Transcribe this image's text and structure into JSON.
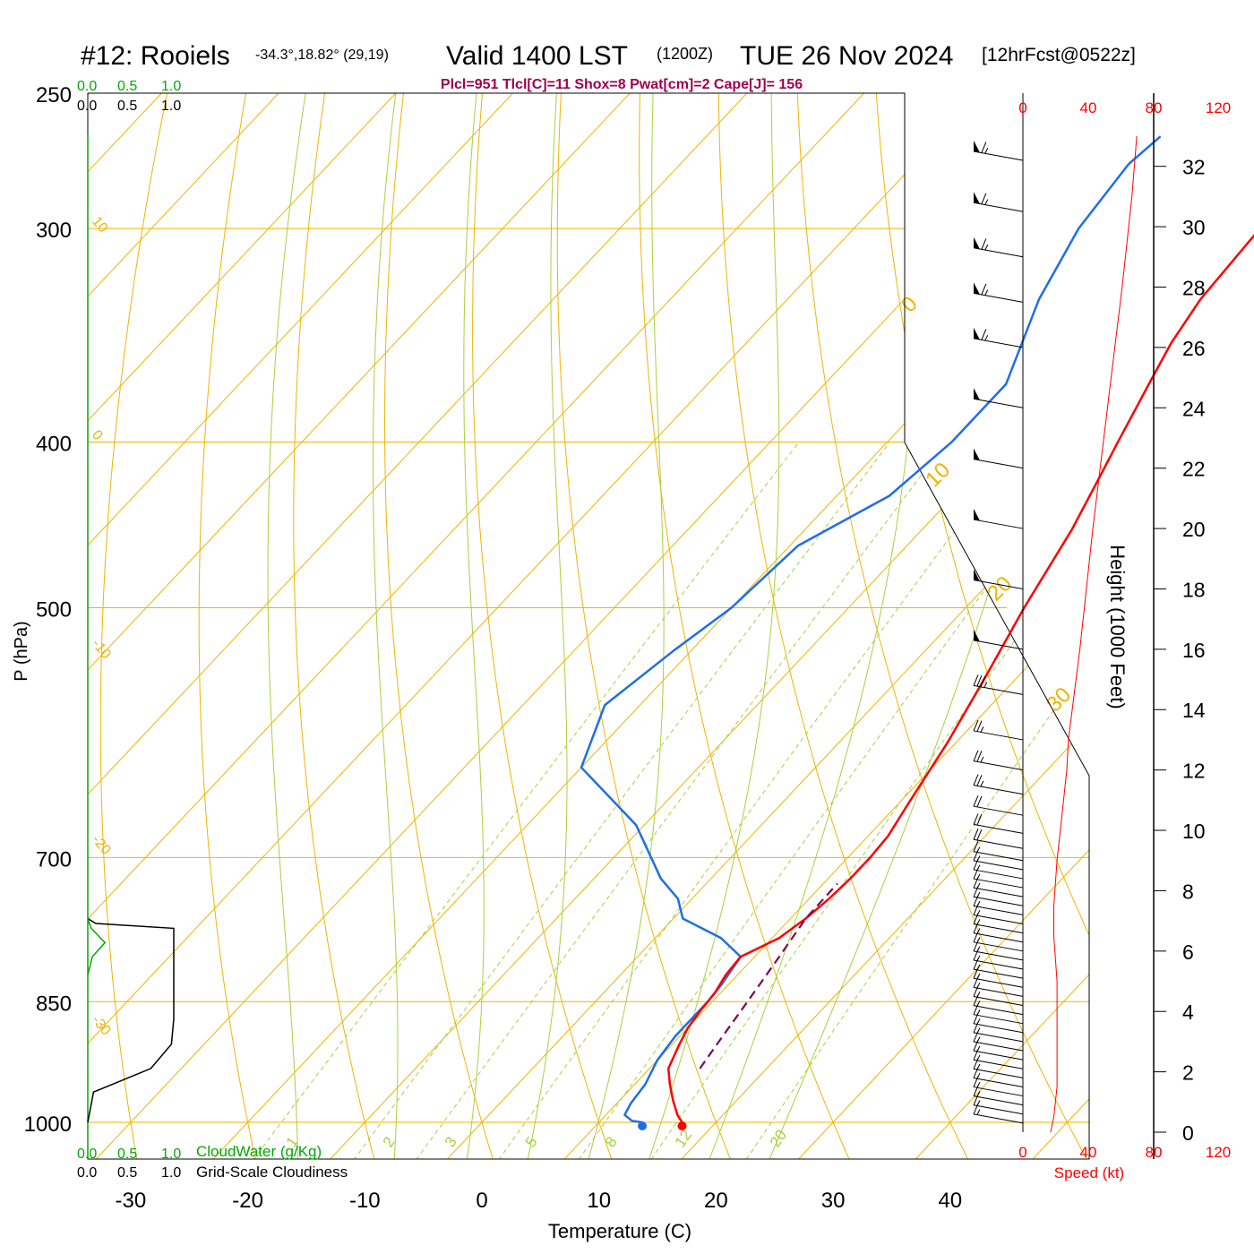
{
  "header": {
    "station": "#12: Rooiels",
    "coords": "-34.3°,18.82° (29,19)",
    "valid": "Valid 1400 LST",
    "utc": "(1200Z)",
    "date": "TUE 26 Nov 2024",
    "forecast": "[12hrFcst@0522z]",
    "indices": "Plcl=951 Tlcl[C]=11 Shox=8 Pwat[cm]=2 Cape[J]= 156"
  },
  "colors": {
    "isobar": "#f0b400",
    "dry_adiabat": "#f0b400",
    "moist_adiabat": "#a8d040",
    "mixing_ratio": "#a8d040",
    "temperature": "#ff0000",
    "dewpoint": "#1e6ee6",
    "parcel": "#7a0a5a",
    "cloudwater": "#00aa00",
    "speed": "#ff0000",
    "indices_text": "#a0004c"
  },
  "chart_data": {
    "type": "skew-t log-p sounding",
    "xlabel": "Temperature (C)",
    "ylabel": "P (hPa)",
    "right_ylabel": "Height (1000 Feet)",
    "x_ticks": [
      "-30",
      "-20",
      "-10",
      "0",
      "10",
      "20",
      "30",
      "40"
    ],
    "x_tick_values": [
      -30,
      -20,
      -10,
      0,
      10,
      20,
      30,
      40
    ],
    "pressure_levels": [
      250,
      300,
      400,
      500,
      700,
      850,
      1000
    ],
    "pressure_labels": [
      "250",
      "300",
      "400",
      "500",
      "700",
      "850",
      "1000"
    ],
    "xlim": [
      -34,
      36
    ],
    "ylim_hpa": [
      1000,
      250
    ],
    "dry_adiabat_labels": [
      {
        "text": "10",
        "p": 300
      },
      {
        "text": "0",
        "p": 400
      },
      {
        "text": "-10",
        "p": 530
      },
      {
        "text": "-20",
        "p": 690
      },
      {
        "text": "-30",
        "p": 880
      }
    ],
    "upper_right_labels": [
      "0",
      "10",
      "20",
      "30"
    ],
    "mixing_ratios": [
      1,
      2,
      3,
      5,
      8,
      12,
      20
    ],
    "mixing_ratio_labels": [
      "1",
      "2",
      "3",
      "5",
      "8",
      "12",
      "20"
    ],
    "temperature": {
      "name": "Temperature",
      "points": [
        [
          1000,
          17.1
        ],
        [
          990,
          16.1
        ],
        [
          970,
          14.5
        ],
        [
          950,
          13.0
        ],
        [
          930,
          11.6
        ],
        [
          900,
          10.6
        ],
        [
          880,
          10.0
        ],
        [
          860,
          9.7
        ],
        [
          840,
          9.5
        ],
        [
          820,
          9.0
        ],
        [
          800,
          8.8
        ],
        [
          780,
          10.6
        ],
        [
          760,
          11.3
        ],
        [
          740,
          11.7
        ],
        [
          720,
          11.9
        ],
        [
          700,
          11.9
        ],
        [
          680,
          11.7
        ],
        [
          650,
          10.8
        ],
        [
          600,
          9.3
        ],
        [
          550,
          7.3
        ],
        [
          500,
          5.0
        ],
        [
          450,
          2.8
        ],
        [
          420,
          1.0
        ],
        [
          400,
          -0.3
        ],
        [
          370,
          -2.3
        ],
        [
          350,
          -3.7
        ],
        [
          330,
          -4.7
        ],
        [
          300,
          -5.3
        ],
        [
          280,
          -5.5
        ],
        [
          265,
          -5.5
        ]
      ]
    },
    "dewpoint": {
      "name": "Dewpoint",
      "points": [
        [
          1000,
          13.7
        ],
        [
          998,
          12.7
        ],
        [
          990,
          11.6
        ],
        [
          975,
          11.2
        ],
        [
          950,
          10.9
        ],
        [
          920,
          10.0
        ],
        [
          890,
          9.6
        ],
        [
          870,
          9.6
        ],
        [
          850,
          9.6
        ],
        [
          830,
          9.4
        ],
        [
          800,
          8.8
        ],
        [
          780,
          5.6
        ],
        [
          760,
          0.8
        ],
        [
          740,
          -1.2
        ],
        [
          720,
          -4.3
        ],
        [
          670,
          -10.7
        ],
        [
          620,
          -20.0
        ],
        [
          570,
          -23.0
        ],
        [
          530,
          -21.5
        ],
        [
          500,
          -20.0
        ],
        [
          460,
          -19.3
        ],
        [
          430,
          -15.5
        ],
        [
          400,
          -14.5
        ],
        [
          370,
          -14.5
        ],
        [
          330,
          -18.5
        ],
        [
          300,
          -20.8
        ],
        [
          275,
          -21.7
        ],
        [
          265,
          -21.2
        ]
      ]
    },
    "parcel": {
      "name": "Parcel",
      "points": [
        [
          930,
          14.3
        ],
        [
          900,
          13.8
        ],
        [
          850,
          13.0
        ],
        [
          800,
          12.1
        ],
        [
          760,
          11.3
        ],
        [
          725,
          11.2
        ]
      ]
    },
    "surface_markers": {
      "temperature": 17.1,
      "dewpoint": 13.7
    },
    "speed_axis": {
      "label": "Speed (kt)",
      "ticks": [
        "0",
        "40",
        "80",
        "120"
      ],
      "tick_values": [
        0,
        40,
        80,
        120
      ]
    },
    "height_axis": {
      "label": "Height (1000 Feet)",
      "ticks": [
        "0",
        "2",
        "4",
        "6",
        "8",
        "10",
        "12",
        "14",
        "16",
        "18",
        "20",
        "22",
        "24",
        "26",
        "28",
        "30",
        "32"
      ],
      "tick_values": [
        0,
        2,
        4,
        6,
        8,
        10,
        12,
        14,
        16,
        18,
        20,
        22,
        24,
        26,
        28,
        30,
        32
      ]
    },
    "wind_speed_profile": [
      [
        0.0,
        17
      ],
      [
        0.5,
        19
      ],
      [
        1.5,
        21
      ],
      [
        3.0,
        21
      ],
      [
        5.0,
        21
      ],
      [
        6.5,
        19
      ],
      [
        7.5,
        19
      ],
      [
        9.0,
        21
      ],
      [
        10.5,
        24
      ],
      [
        12.0,
        27
      ],
      [
        13.0,
        28
      ],
      [
        16.0,
        35
      ],
      [
        20.0,
        43
      ],
      [
        24.0,
        52
      ],
      [
        28.0,
        61
      ],
      [
        31.0,
        67
      ],
      [
        33.0,
        70
      ]
    ],
    "wind_barbs": [
      {
        "h": 0.3,
        "spd": 15
      },
      {
        "h": 0.6,
        "spd": 15
      },
      {
        "h": 0.9,
        "spd": 15
      },
      {
        "h": 1.2,
        "spd": 15
      },
      {
        "h": 1.5,
        "spd": 15
      },
      {
        "h": 1.8,
        "spd": 15
      },
      {
        "h": 2.1,
        "spd": 15
      },
      {
        "h": 2.4,
        "spd": 15
      },
      {
        "h": 2.7,
        "spd": 15
      },
      {
        "h": 3.0,
        "spd": 15
      },
      {
        "h": 3.3,
        "spd": 15
      },
      {
        "h": 3.6,
        "spd": 15
      },
      {
        "h": 3.9,
        "spd": 15
      },
      {
        "h": 4.2,
        "spd": 15
      },
      {
        "h": 4.5,
        "spd": 15
      },
      {
        "h": 4.8,
        "spd": 15
      },
      {
        "h": 5.1,
        "spd": 15
      },
      {
        "h": 5.4,
        "spd": 15
      },
      {
        "h": 5.7,
        "spd": 15
      },
      {
        "h": 6.0,
        "spd": 15
      },
      {
        "h": 6.3,
        "spd": 15
      },
      {
        "h": 6.6,
        "spd": 15
      },
      {
        "h": 6.9,
        "spd": 15
      },
      {
        "h": 7.2,
        "spd": 15
      },
      {
        "h": 7.5,
        "spd": 15
      },
      {
        "h": 7.8,
        "spd": 15
      },
      {
        "h": 8.1,
        "spd": 15
      },
      {
        "h": 8.4,
        "spd": 15
      },
      {
        "h": 8.7,
        "spd": 15
      },
      {
        "h": 9.0,
        "spd": 15
      },
      {
        "h": 9.4,
        "spd": 20
      },
      {
        "h": 9.9,
        "spd": 20
      },
      {
        "h": 10.5,
        "spd": 20
      },
      {
        "h": 11.2,
        "spd": 25
      },
      {
        "h": 12.0,
        "spd": 25
      },
      {
        "h": 13.0,
        "spd": 25
      },
      {
        "h": 14.5,
        "spd": 35
      },
      {
        "h": 16.0,
        "spd": 50
      },
      {
        "h": 18.0,
        "spd": 50
      },
      {
        "h": 20.0,
        "spd": 50
      },
      {
        "h": 22.0,
        "spd": 50
      },
      {
        "h": 24.0,
        "spd": 50
      },
      {
        "h": 26.0,
        "spd": 65
      },
      {
        "h": 27.5,
        "spd": 65
      },
      {
        "h": 29.0,
        "spd": 65
      },
      {
        "h": 30.5,
        "spd": 65
      },
      {
        "h": 32.2,
        "spd": 65
      }
    ],
    "cloud_scale": {
      "ticks": [
        "0.0",
        "0.5",
        "1.0"
      ],
      "cloudwater_label": "CloudWater (g/Kg)",
      "cloudiness_label": "Grid-Scale Cloudiness"
    },
    "cloudiness_profile": [
      [
        1000,
        0
      ],
      [
        960,
        0.05
      ],
      [
        930,
        0.55
      ],
      [
        900,
        0.73
      ],
      [
        870,
        0.75
      ],
      [
        830,
        0.75
      ],
      [
        790,
        0.75
      ],
      [
        770,
        0.75
      ],
      [
        765,
        0.07
      ],
      [
        760,
        0
      ]
    ],
    "cloudwater_profile": [
      [
        820,
        0
      ],
      [
        800,
        0.04
      ],
      [
        785,
        0.15
      ],
      [
        770,
        0.03
      ],
      [
        760,
        0
      ]
    ]
  }
}
